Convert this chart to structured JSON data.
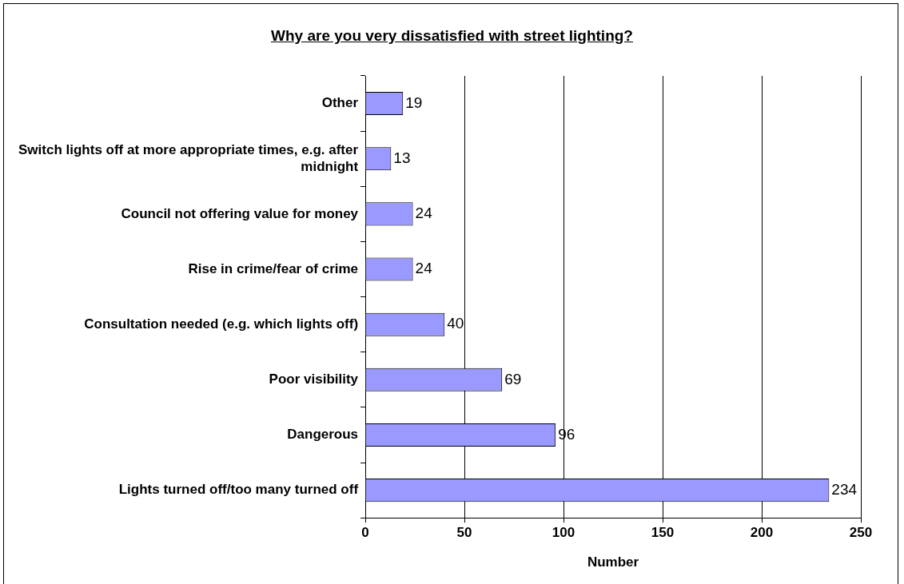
{
  "chart_data": {
    "type": "bar",
    "orientation": "horizontal",
    "title": "Why are you very dissatisfied with street lighting?",
    "xlabel": "Number",
    "categories": [
      "Other",
      "Switch lights off at more appropriate times, e.g. after midnight",
      "Council not offering value for money",
      "Rise in crime/fear of crime",
      "Consultation needed (e.g. which lights off)",
      "Poor visibility",
      "Dangerous",
      "Lights turned off/too many turned off"
    ],
    "values": [
      19,
      13,
      24,
      24,
      40,
      69,
      96,
      234
    ],
    "color": "#9999ff",
    "xlim": [
      0,
      250
    ],
    "xticks": [
      0,
      50,
      100,
      150,
      200,
      250
    ],
    "grid": "x",
    "legend": false,
    "data_labels": true
  }
}
